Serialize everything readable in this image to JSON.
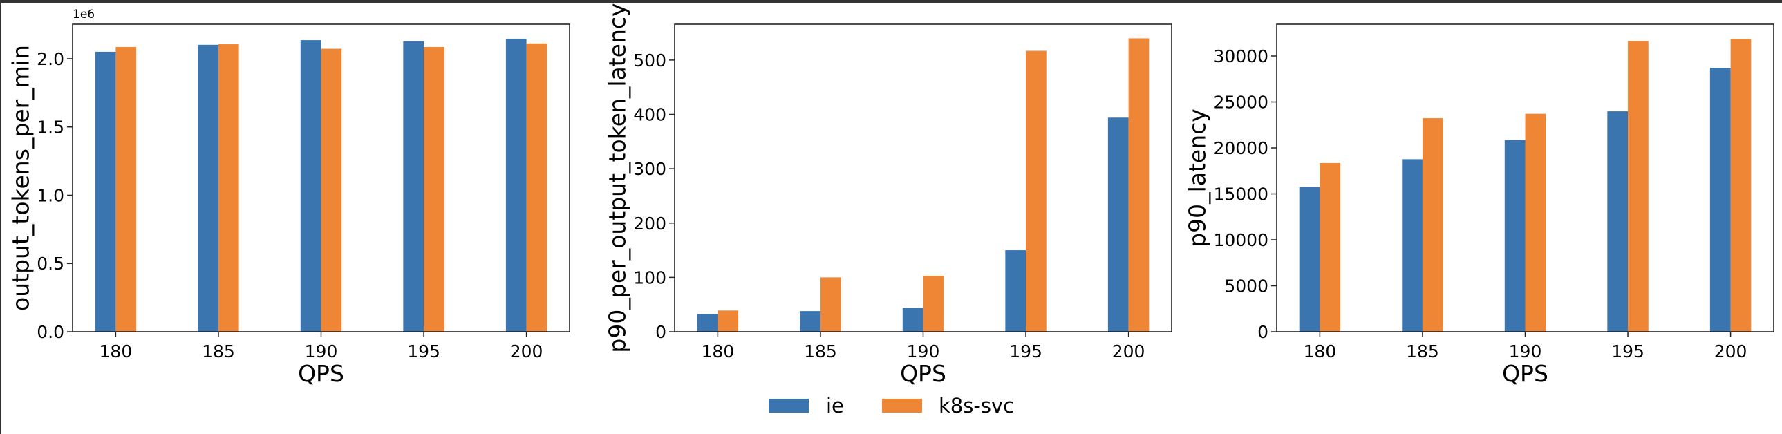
{
  "colors": {
    "ie": "#3b75af",
    "k8s-svc": "#ef8636"
  },
  "legend": {
    "placement": "bottom-center",
    "entries": [
      "ie",
      "k8s-svc"
    ]
  },
  "chart_data": [
    {
      "type": "bar",
      "xlabel": "QPS",
      "ylabel": "output_tokens_per_min",
      "y_offset_label": "1e6",
      "categories": [
        180,
        185,
        190,
        195,
        200
      ],
      "yticks": [
        "0.0",
        "0.5",
        "1.0",
        "1.5",
        "2.0"
      ],
      "ytick_values": [
        0,
        500000,
        1000000,
        1500000,
        2000000
      ],
      "ylim": [
        0,
        2253000
      ],
      "xlim": [
        177.9,
        202.1
      ],
      "grid": false,
      "series": [
        {
          "name": "ie",
          "values": [
            2051000,
            2102000,
            2136000,
            2128000,
            2147000
          ]
        },
        {
          "name": "k8s-svc",
          "values": [
            2086000,
            2106000,
            2073000,
            2086000,
            2112000
          ]
        }
      ]
    },
    {
      "type": "bar",
      "xlabel": "QPS",
      "ylabel": "p90_per_output_token_latency",
      "categories": [
        180,
        185,
        190,
        195,
        200
      ],
      "yticks": [
        "0",
        "100",
        "200",
        "300",
        "400",
        "500"
      ],
      "ytick_values": [
        0,
        100,
        200,
        300,
        400,
        500
      ],
      "ylim": [
        0,
        566
      ],
      "xlim": [
        177.9,
        202.1
      ],
      "grid": false,
      "series": [
        {
          "name": "ie",
          "values": [
            32.5,
            38,
            44,
            150,
            394
          ]
        },
        {
          "name": "k8s-svc",
          "values": [
            39,
            100,
            103,
            517,
            540
          ]
        }
      ]
    },
    {
      "type": "bar",
      "xlabel": "QPS",
      "ylabel": "p90_latency",
      "categories": [
        180,
        185,
        190,
        195,
        200
      ],
      "yticks": [
        "0",
        "5000",
        "10000",
        "15000",
        "20000",
        "25000",
        "30000"
      ],
      "ytick_values": [
        0,
        5000,
        10000,
        15000,
        20000,
        25000,
        30000
      ],
      "ylim": [
        0,
        33460
      ],
      "xlim": [
        177.9,
        202.1
      ],
      "grid": false,
      "series": [
        {
          "name": "ie",
          "values": [
            15750,
            18770,
            20850,
            23980,
            28710
          ]
        },
        {
          "name": "k8s-svc",
          "values": [
            18350,
            23230,
            23710,
            31630,
            31870
          ]
        }
      ]
    }
  ]
}
